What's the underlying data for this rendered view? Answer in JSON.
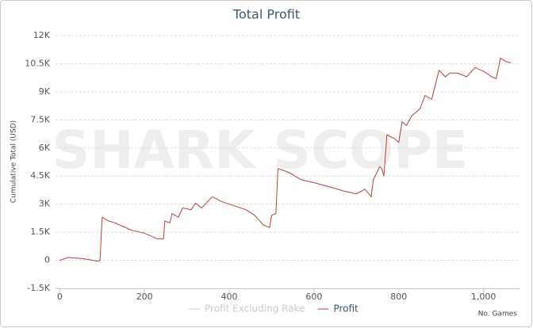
{
  "chart_data": {
    "type": "line",
    "title": "Total Profit",
    "watermark": "SHARK SCOPE",
    "ylabel": "Cumulative Total (USD)",
    "xlabel": "No. Games",
    "xlim": [
      -10,
      1085
    ],
    "ylim": [
      -1500,
      12000
    ],
    "xticks": [
      0,
      200,
      400,
      600,
      800,
      {
        "value": 1000,
        "label": "1,000"
      }
    ],
    "yticks": [
      {
        "value": -1500,
        "label": "-1.5K"
      },
      0,
      {
        "value": 1500,
        "label": "1.5K"
      },
      {
        "value": 3000,
        "label": "3K"
      },
      {
        "value": 4500,
        "label": "4.5K"
      },
      {
        "value": 6000,
        "label": "6K"
      },
      {
        "value": 7500,
        "label": "7.5K"
      },
      {
        "value": 9000,
        "label": "9K"
      },
      {
        "value": 10500,
        "label": "10.5K"
      },
      {
        "value": 12000,
        "label": "12K"
      }
    ],
    "grid": true,
    "legend": "bottom",
    "legend_items": [
      {
        "name": "Profit Excluding Rake",
        "color": "#cccccc",
        "visible": false
      }
    ],
    "x": [
      0,
      20,
      50,
      70,
      90,
      95,
      100,
      115,
      130,
      150,
      170,
      200,
      230,
      245,
      248,
      260,
      265,
      280,
      290,
      310,
      320,
      335,
      360,
      380,
      400,
      440,
      460,
      480,
      495,
      500,
      510,
      515,
      540,
      570,
      600,
      640,
      670,
      700,
      720,
      735,
      740,
      755,
      760,
      765,
      772,
      790,
      800,
      808,
      818,
      830,
      850,
      862,
      878,
      895,
      910,
      920,
      940,
      960,
      980,
      1000,
      1020,
      1030,
      1040,
      1055,
      1065
    ],
    "series": [
      {
        "name": "Profit",
        "color": "#b5403f",
        "values": [
          0,
          150,
          100,
          30,
          -50,
          0,
          2300,
          2100,
          2000,
          1800,
          1600,
          1450,
          1150,
          1150,
          2100,
          2000,
          2500,
          2300,
          2800,
          2700,
          3050,
          2800,
          3400,
          3150,
          3000,
          2700,
          2400,
          1900,
          1750,
          2400,
          2500,
          4900,
          4700,
          4300,
          4150,
          3900,
          3700,
          3550,
          3800,
          3400,
          4300,
          5000,
          4900,
          4500,
          6700,
          6500,
          6300,
          7400,
          7200,
          7700,
          8100,
          8800,
          8600,
          10150,
          9800,
          10000,
          10000,
          9800,
          10300,
          10100,
          9800,
          9700,
          10800,
          10600,
          10550
        ]
      }
    ]
  }
}
